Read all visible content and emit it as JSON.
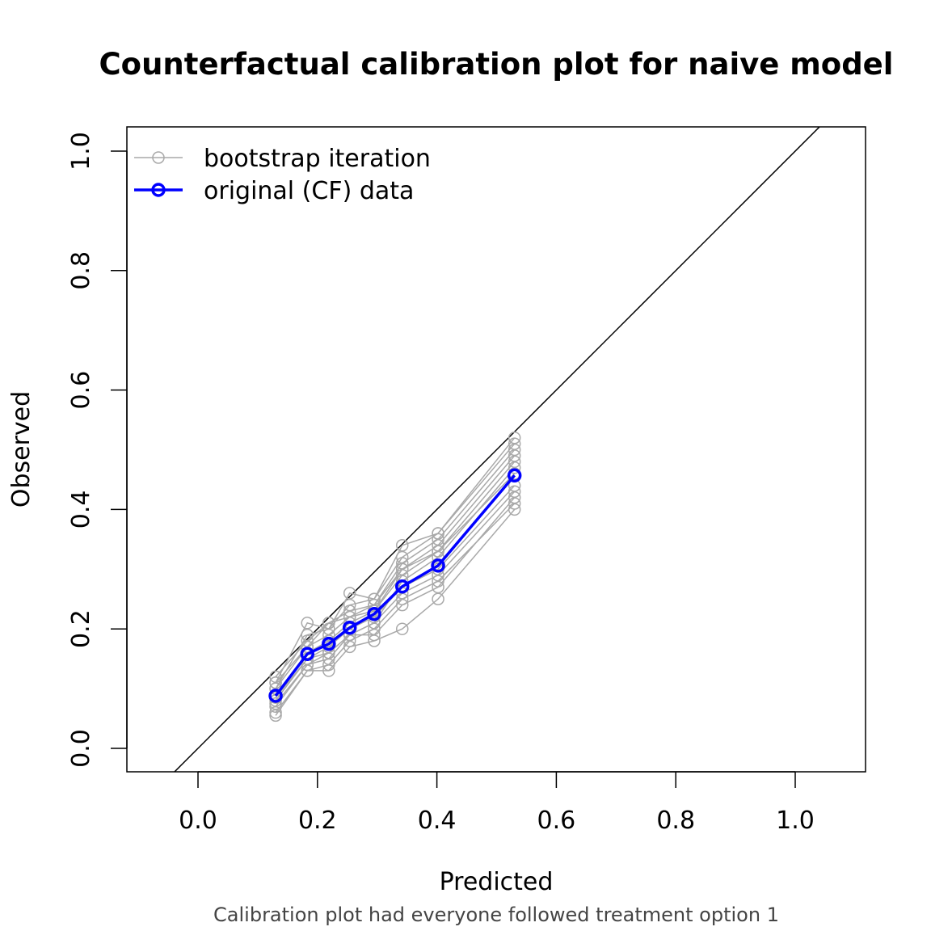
{
  "chart_data": {
    "type": "line",
    "title": "Counterfactual calibration plot for naive model",
    "xlabel": "Predicted",
    "ylabel": "Observed",
    "subtitle": "Calibration plot had everyone followed treatment option 1",
    "xlim": [
      -0.12,
      1.12
    ],
    "ylim": [
      -0.04,
      1.04
    ],
    "xticks": [
      "0.0",
      "0.2",
      "0.4",
      "0.6",
      "0.8",
      "1.0"
    ],
    "yticks": [
      "0.0",
      "0.2",
      "0.4",
      "0.6",
      "0.8",
      "1.0"
    ],
    "grid": false,
    "legend_position": "top-left",
    "reference_line": "y = x",
    "colors": {
      "bootstrap": "#a9a9a9",
      "original": "#0000ff",
      "reference": "#000000"
    },
    "legend": [
      {
        "label": "bootstrap iteration",
        "color": "#a9a9a9"
      },
      {
        "label": "original (CF) data",
        "color": "#0000ff"
      }
    ],
    "x": [
      0.13,
      0.183,
      0.219,
      0.254,
      0.295,
      0.342,
      0.402,
      0.53
    ],
    "original": [
      0.088,
      0.158,
      0.175,
      0.202,
      0.225,
      0.271,
      0.306,
      0.457
    ],
    "bootstrap": [
      [
        0.1,
        0.17,
        0.19,
        0.22,
        0.24,
        0.3,
        0.34,
        0.49
      ],
      [
        0.08,
        0.15,
        0.16,
        0.19,
        0.21,
        0.28,
        0.32,
        0.47
      ],
      [
        0.11,
        0.21,
        0.2,
        0.26,
        0.25,
        0.34,
        0.36,
        0.52
      ],
      [
        0.055,
        0.13,
        0.13,
        0.17,
        0.18,
        0.2,
        0.25,
        0.4
      ],
      [
        0.12,
        0.18,
        0.21,
        0.23,
        0.24,
        0.31,
        0.35,
        0.5
      ],
      [
        0.07,
        0.14,
        0.15,
        0.19,
        0.19,
        0.24,
        0.27,
        0.42
      ],
      [
        0.09,
        0.16,
        0.18,
        0.21,
        0.23,
        0.29,
        0.33,
        0.48
      ],
      [
        0.06,
        0.13,
        0.14,
        0.18,
        0.2,
        0.25,
        0.28,
        0.41
      ],
      [
        0.1,
        0.19,
        0.2,
        0.24,
        0.25,
        0.32,
        0.36,
        0.51
      ],
      [
        0.085,
        0.15,
        0.17,
        0.2,
        0.22,
        0.27,
        0.3,
        0.44
      ],
      [
        0.11,
        0.17,
        0.21,
        0.22,
        0.23,
        0.3,
        0.33,
        0.46
      ],
      [
        0.075,
        0.14,
        0.16,
        0.19,
        0.21,
        0.26,
        0.29,
        0.43
      ]
    ]
  }
}
